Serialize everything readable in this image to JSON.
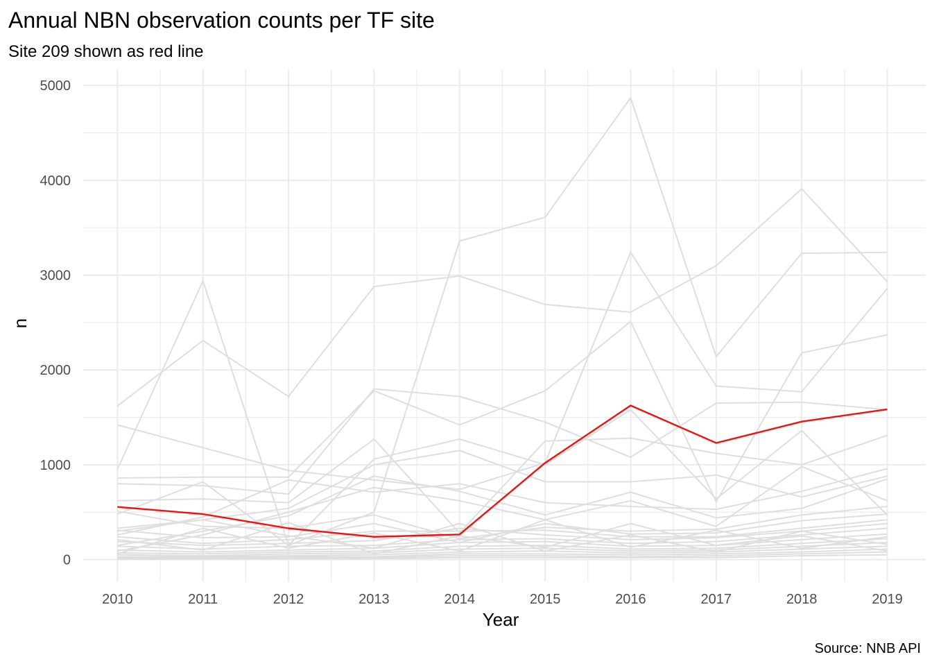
{
  "chart_data": {
    "type": "line",
    "title": "Annual NBN observation counts per TF site",
    "subtitle": "Site 209 shown as red line",
    "xlabel": "Year",
    "ylabel": "n",
    "caption": "Source: NNB API",
    "x": [
      2010,
      2011,
      2012,
      2013,
      2014,
      2015,
      2016,
      2017,
      2018,
      2019
    ],
    "x_ticks": [
      "2010",
      "2011",
      "2012",
      "2013",
      "2014",
      "2015",
      "2016",
      "2017",
      "2018",
      "2019"
    ],
    "y_ticks": [
      "0",
      "1000",
      "2000",
      "3000",
      "4000",
      "5000"
    ],
    "xlim": [
      2009.6,
      2019.45
    ],
    "ylim": [
      -230,
      5170
    ],
    "grid": true,
    "legend": "none",
    "colors": {
      "background_series": "#dedede",
      "highlight": "#ee1111"
    },
    "highlight": {
      "values": [
        555,
        480,
        330,
        240,
        265,
        1020,
        1625,
        1230,
        1455,
        1585
      ]
    },
    "series": [
      {
        "values": [
          1620,
          2310,
          1720,
          2880,
          2990,
          2690,
          2610,
          3100,
          3910,
          2930
        ]
      },
      {
        "values": [
          950,
          2940,
          150,
          500,
          3360,
          3610,
          4870,
          2140,
          3230,
          3240
        ]
      },
      {
        "values": [
          1420,
          1180,
          940,
          840,
          740,
          1020,
          3240,
          1830,
          1770,
          2860
        ]
      },
      {
        "values": [
          860,
          870,
          870,
          1780,
          1420,
          1780,
          2510,
          610,
          2180,
          2370
        ]
      },
      {
        "values": [
          800,
          780,
          690,
          1800,
          1720,
          1450,
          1080,
          1650,
          1660,
          1580
        ]
      },
      {
        "values": [
          620,
          640,
          600,
          1270,
          280,
          1250,
          1280,
          1120,
          1000,
          1310
        ]
      },
      {
        "values": [
          480,
          820,
          150,
          1060,
          1270,
          1000,
          1580,
          640,
          1360,
          470
        ]
      },
      {
        "values": [
          330,
          420,
          540,
          1000,
          1150,
          820,
          820,
          890,
          660,
          880
        ]
      },
      {
        "values": [
          260,
          450,
          840,
          710,
          800,
          600,
          560,
          530,
          720,
          960
        ]
      },
      {
        "values": [
          150,
          300,
          460,
          880,
          720,
          470,
          710,
          440,
          540,
          850
        ]
      },
      {
        "values": [
          90,
          260,
          500,
          760,
          620,
          420,
          620,
          350,
          980,
          620
        ]
      },
      {
        "values": [
          510,
          350,
          330,
          470,
          220,
          340,
          300,
          320,
          470,
          560
        ]
      },
      {
        "values": [
          310,
          230,
          240,
          380,
          180,
          380,
          270,
          280,
          410,
          480
        ]
      },
      {
        "values": [
          240,
          170,
          210,
          300,
          300,
          310,
          240,
          240,
          330,
          420
        ]
      },
      {
        "values": [
          190,
          150,
          170,
          200,
          330,
          260,
          210,
          230,
          300,
          380
        ]
      },
      {
        "values": [
          140,
          110,
          140,
          150,
          210,
          220,
          170,
          190,
          260,
          330
        ]
      },
      {
        "values": [
          100,
          80,
          100,
          120,
          180,
          190,
          140,
          150,
          210,
          270
        ]
      },
      {
        "values": [
          70,
          60,
          80,
          90,
          140,
          150,
          110,
          120,
          170,
          220
        ]
      },
      {
        "values": [
          50,
          40,
          60,
          70,
          110,
          120,
          90,
          100,
          140,
          180
        ]
      },
      {
        "values": [
          30,
          30,
          40,
          50,
          80,
          90,
          70,
          80,
          110,
          140
        ]
      },
      {
        "values": [
          20,
          20,
          30,
          30,
          60,
          60,
          50,
          60,
          80,
          110
        ]
      },
      {
        "values": [
          10,
          10,
          20,
          20,
          40,
          40,
          30,
          40,
          60,
          80
        ]
      },
      {
        "values": [
          5,
          5,
          10,
          10,
          20,
          20,
          20,
          20,
          40,
          50
        ]
      },
      {
        "values": [
          300,
          420,
          250,
          120,
          380,
          90,
          260,
          80,
          300,
          160
        ]
      },
      {
        "values": [
          60,
          330,
          120,
          280,
          90,
          420,
          130,
          310,
          120,
          240
        ]
      },
      {
        "values": [
          210,
          100,
          390,
          60,
          250,
          130,
          380,
          150,
          250,
          90
        ]
      }
    ]
  }
}
